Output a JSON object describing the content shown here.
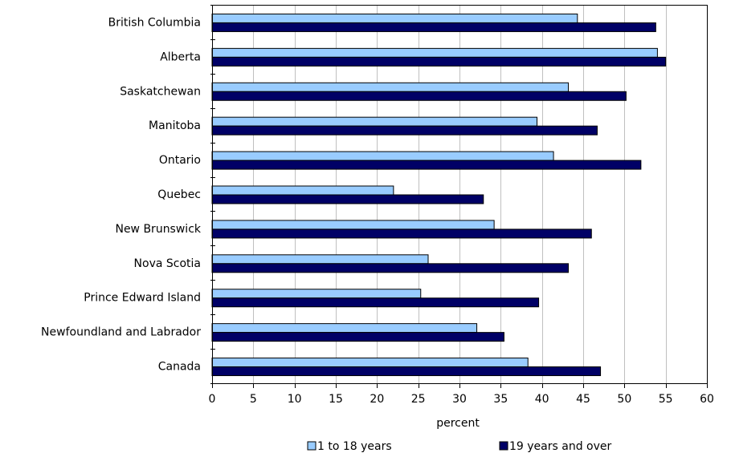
{
  "chart_data": {
    "type": "bar",
    "orientation": "horizontal",
    "categories": [
      "British Columbia",
      "Alberta",
      "Saskatchewan",
      "Manitoba",
      "Ontario",
      "Quebec",
      "New Brunswick",
      "Nova Scotia",
      "Prince Edward Island",
      "Newfoundland and Labrador",
      "Canada"
    ],
    "series": [
      {
        "name": "1 to 18 years",
        "color": "#99ccff",
        "values": [
          44.3,
          54.0,
          43.2,
          39.4,
          41.4,
          22.0,
          34.2,
          26.2,
          25.3,
          32.1,
          38.3
        ]
      },
      {
        "name": "19 years and over",
        "color": "#000066",
        "values": [
          53.8,
          55.0,
          50.2,
          46.7,
          52.0,
          32.9,
          46.0,
          43.2,
          39.6,
          35.4,
          47.1
        ]
      }
    ],
    "xlabel": "percent",
    "ylabel": "",
    "xlim": [
      0,
      60
    ],
    "xticks": [
      "0",
      "5",
      "10",
      "15",
      "20",
      "25",
      "30",
      "35",
      "40",
      "45",
      "50",
      "55",
      "60"
    ],
    "grid": "vertical",
    "legend_position": "bottom"
  }
}
